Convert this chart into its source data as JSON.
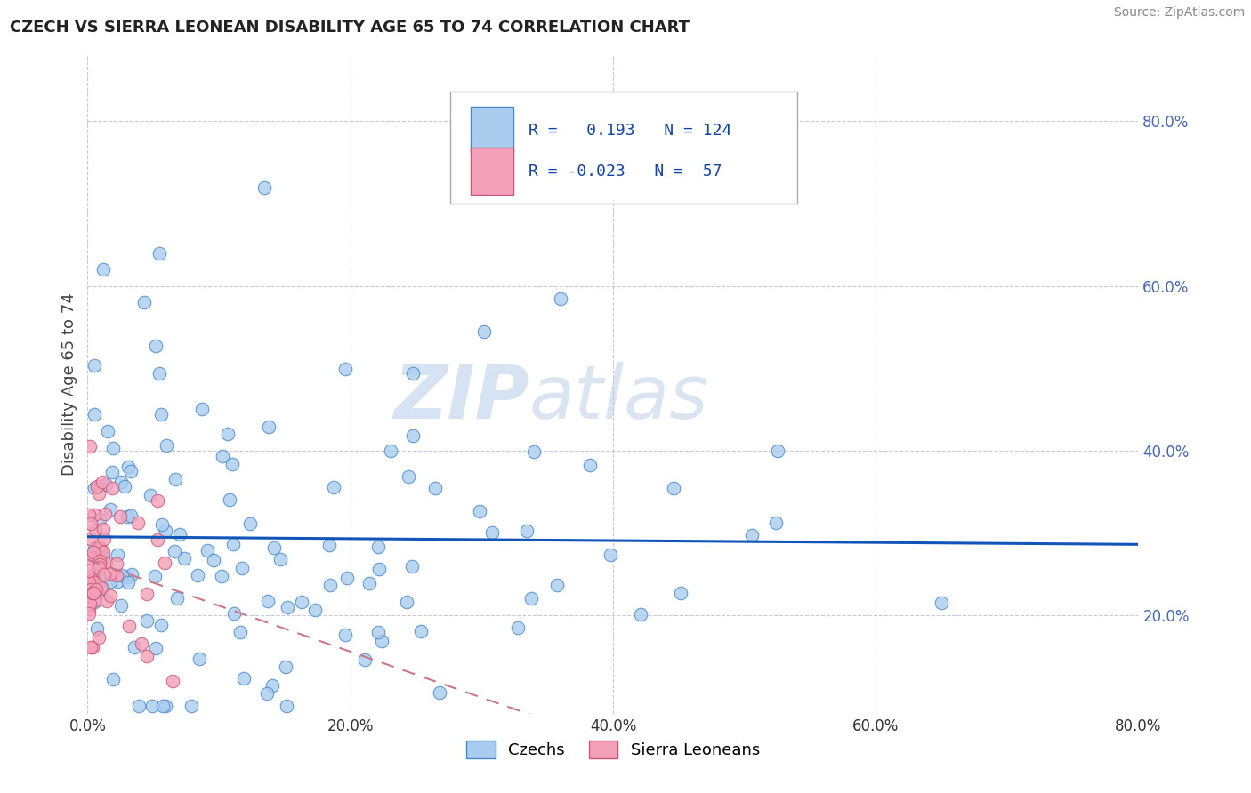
{
  "title": "CZECH VS SIERRA LEONEAN DISABILITY AGE 65 TO 74 CORRELATION CHART",
  "source": "Source: ZipAtlas.com",
  "ylabel": "Disability Age 65 to 74",
  "xlim": [
    0.0,
    0.8
  ],
  "ylim": [
    0.08,
    0.88
  ],
  "xticks": [
    0.0,
    0.2,
    0.4,
    0.6,
    0.8
  ],
  "yticks": [
    0.2,
    0.4,
    0.6,
    0.8
  ],
  "xticklabels": [
    "0.0%",
    "20.0%",
    "40.0%",
    "60.0%",
    "80.0%"
  ],
  "yticklabels": [
    "20.0%",
    "40.0%",
    "60.0%",
    "80.0%"
  ],
  "czech_color": "#aaccee",
  "czech_edge": "#4488cc",
  "sierra_color": "#f4a0b8",
  "sierra_edge": "#cc5577",
  "trend_czech_color": "#1155bb",
  "trend_sierra_color": "#cc7788",
  "R_czech": 0.193,
  "N_czech": 124,
  "R_sierra": -0.023,
  "N_sierra": 57,
  "watermark_zip": "ZIP",
  "watermark_atlas": "atlas",
  "background_color": "#ffffff",
  "grid_color": "#bbbbcc",
  "tick_color": "#4466bb",
  "legend_R_color": "#1144aa",
  "legend_N_color": "#1144aa"
}
